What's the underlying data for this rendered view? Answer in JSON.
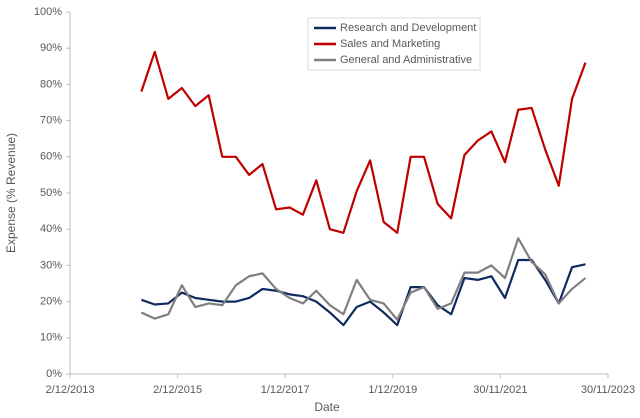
{
  "chart_data": {
    "type": "line",
    "x_label": "Date",
    "y_label": "Expense (% Revenue)",
    "legend": "upper center",
    "x": [
      "2015-03-31",
      "2015-06-30",
      "2015-09-30",
      "2015-12-31",
      "2016-03-31",
      "2016-06-30",
      "2016-09-30",
      "2016-12-31",
      "2017-03-31",
      "2017-06-30",
      "2017-09-30",
      "2017-12-31",
      "2018-03-31",
      "2018-06-30",
      "2018-09-30",
      "2018-12-31",
      "2019-03-31",
      "2019-06-30",
      "2019-09-30",
      "2019-12-31",
      "2020-03-31",
      "2020-06-30",
      "2020-09-30",
      "2020-12-31",
      "2021-03-31",
      "2021-06-30",
      "2021-09-30",
      "2021-12-31",
      "2022-03-31",
      "2022-06-30",
      "2022-09-30",
      "2022-12-31",
      "2023-03-31",
      "2023-06-30"
    ],
    "series": [
      {
        "name": "Research and Development",
        "color": "#0f2a5e",
        "values": [
          20.5,
          19.2,
          19.5,
          22.5,
          21,
          20.5,
          20,
          20,
          21,
          23.5,
          23,
          22,
          21.5,
          20,
          17,
          13.5,
          18.5,
          20,
          17,
          13.5,
          24,
          24,
          19,
          16.5,
          26.5,
          26,
          27,
          21,
          31.5,
          31.5,
          26,
          19.5,
          29.5,
          30.3
        ]
      },
      {
        "name": "Sales and Marketing",
        "color": "#c00000",
        "values": [
          78,
          89,
          76,
          79,
          74,
          77,
          60,
          60,
          55,
          58,
          45.5,
          46,
          44,
          53.5,
          40,
          39,
          50.5,
          59,
          42,
          39,
          60,
          60,
          47,
          43,
          60.5,
          64.5,
          67,
          58.5,
          73,
          73.5,
          62,
          52,
          76,
          86
        ]
      },
      {
        "name": "General and Administrative",
        "color": "#7f7f7f",
        "values": [
          17,
          15.3,
          16.5,
          24.5,
          18.5,
          19.5,
          19,
          24.5,
          27,
          27.8,
          23.5,
          21,
          19.5,
          23,
          19,
          16.5,
          26,
          20.5,
          19.5,
          15,
          22.5,
          24,
          18,
          19.5,
          28,
          28,
          30,
          26.5,
          37.5,
          31,
          27.5,
          19.5,
          23.5,
          26.5
        ]
      }
    ],
    "xlim": [
      "2013-12-02",
      "2023-11-30"
    ],
    "xticks": [
      {
        "value": "2013-12-02",
        "label": "2/12/2013"
      },
      {
        "value": "2015-12-02",
        "label": "2/12/2015"
      },
      {
        "value": "2017-12-01",
        "label": "1/12/2017"
      },
      {
        "value": "2019-12-01",
        "label": "1/12/2019"
      },
      {
        "value": "2021-11-30",
        "label": "30/11/2021"
      },
      {
        "value": "2023-11-30",
        "label": "30/11/2023"
      }
    ],
    "ylim": [
      0,
      100
    ],
    "yticks": [
      {
        "value": 0,
        "label": "0%"
      },
      {
        "value": 10,
        "label": "10%"
      },
      {
        "value": 20,
        "label": "20%"
      },
      {
        "value": 30,
        "label": "30%"
      },
      {
        "value": 40,
        "label": "40%"
      },
      {
        "value": 50,
        "label": "50%"
      },
      {
        "value": 60,
        "label": "60%"
      },
      {
        "value": 70,
        "label": "70%"
      },
      {
        "value": 80,
        "label": "80%"
      },
      {
        "value": 90,
        "label": "90%"
      },
      {
        "value": 100,
        "label": "100%"
      }
    ]
  }
}
